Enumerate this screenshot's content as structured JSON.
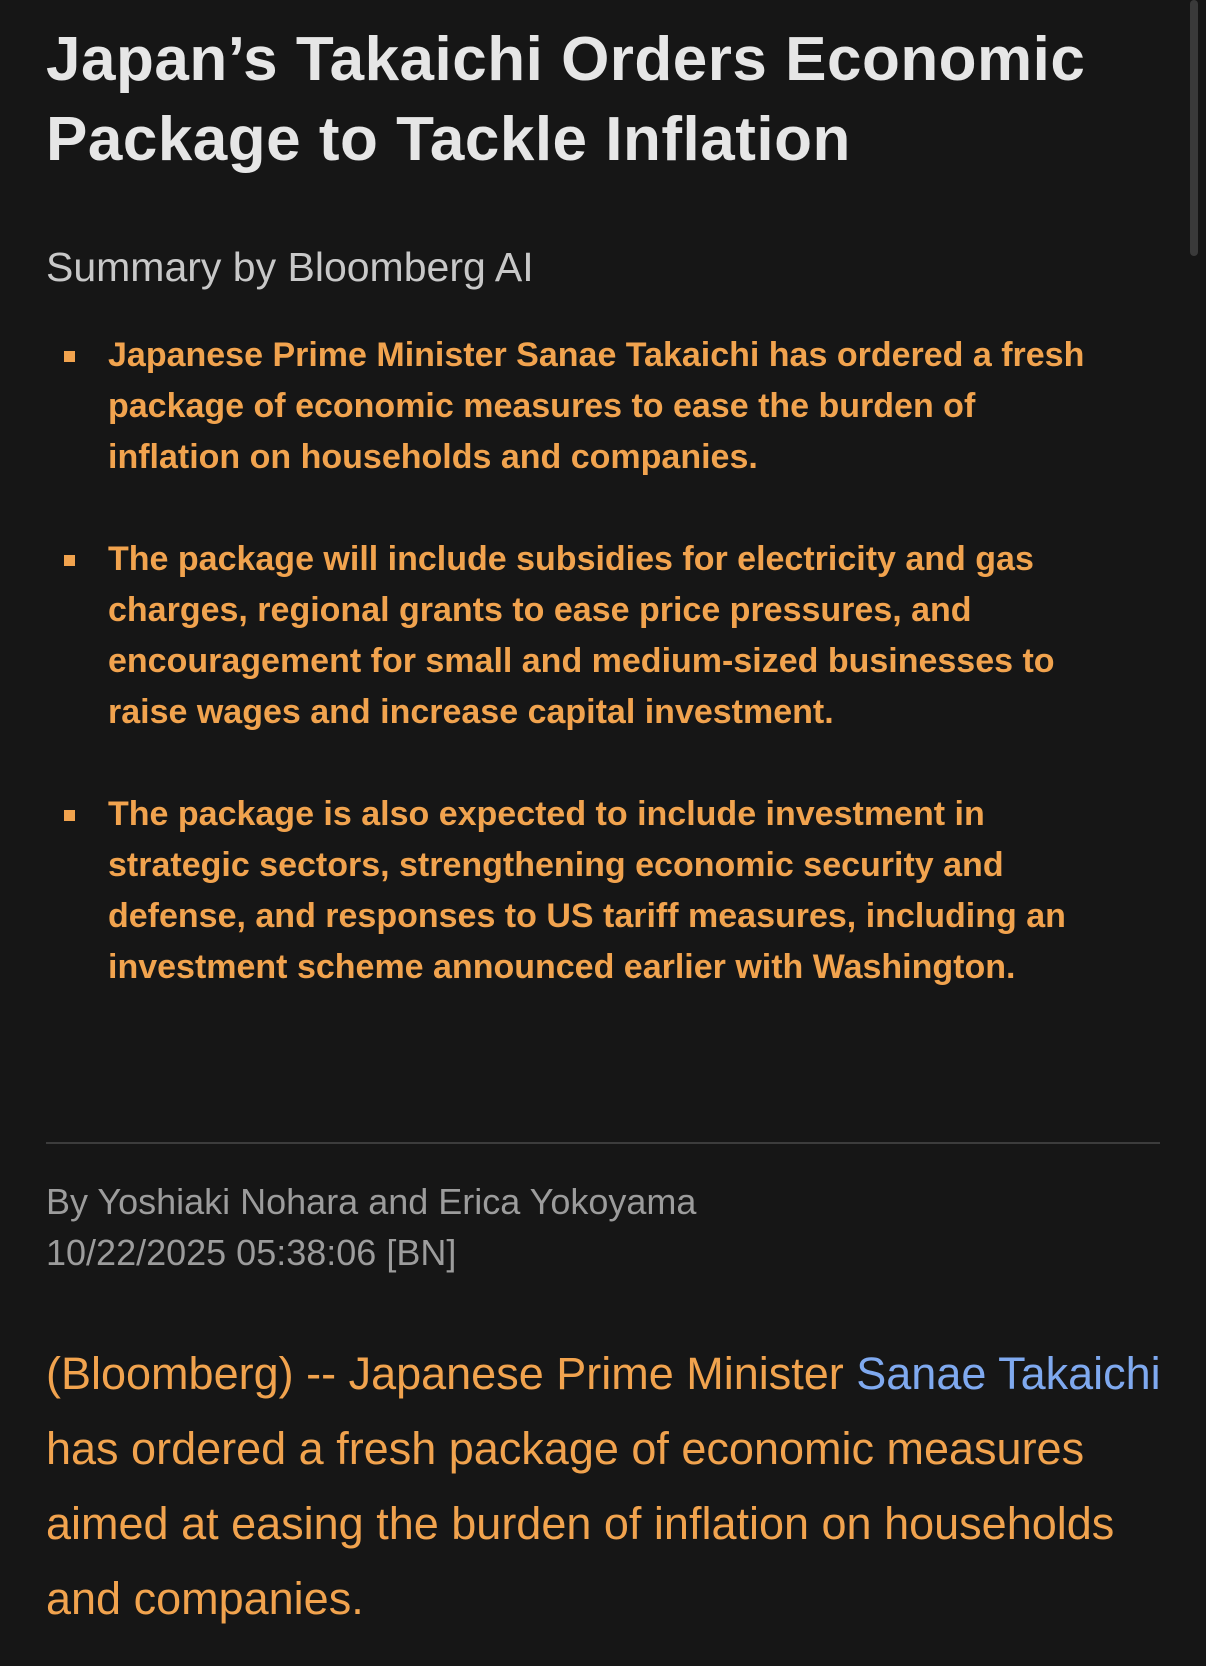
{
  "header": {
    "title": "Japan’s Takaichi Orders Economic Package to Tackle Inflation"
  },
  "summary": {
    "heading": "Summary by Bloomberg AI",
    "bullets": [
      "Japanese Prime Minister Sanae Takaichi has ordered a fresh package of economic measures to ease the burden of inflation on households and companies.",
      "The package will include subsidies for electricity and gas charges, regional grants to ease price pressures, and encouragement for small and medium-sized businesses to raise wages and increase capital investment.",
      "The package is also expected to include investment in strategic sectors, strengthening economic security and defense, and responses to US tariff measures, including an investment scheme announced earlier with Washington."
    ]
  },
  "byline": {
    "authors": "By Yoshiaki Nohara and Erica Yokoyama",
    "timestamp": "10/22/2025 05:38:06 [BN]"
  },
  "body": {
    "text_before": "(Bloomberg) -- Japanese Prime Minister ",
    "link": "Sanae Takaichi",
    "text_after": " has ordered a fresh package of economic measures aimed at easing the burden of inflation on households and companies."
  }
}
